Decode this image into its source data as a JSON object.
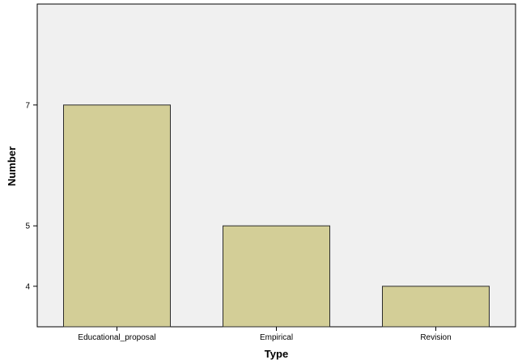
{
  "chart_data": {
    "type": "bar",
    "title": "",
    "xlabel": "Type",
    "ylabel": "Number",
    "categories": [
      "Educational_proposal",
      "Empirical",
      "Revision"
    ],
    "values": [
      7,
      5,
      4
    ],
    "ylim_display": [
      3.33,
      8.67
    ],
    "yticks": [
      4,
      5,
      7
    ],
    "grid": false,
    "colors": {
      "plot_background": "#f0f0f0",
      "bar_fill": "#d3ce97",
      "bar_stroke": "#2b2b2b",
      "axis": "#000000"
    }
  }
}
